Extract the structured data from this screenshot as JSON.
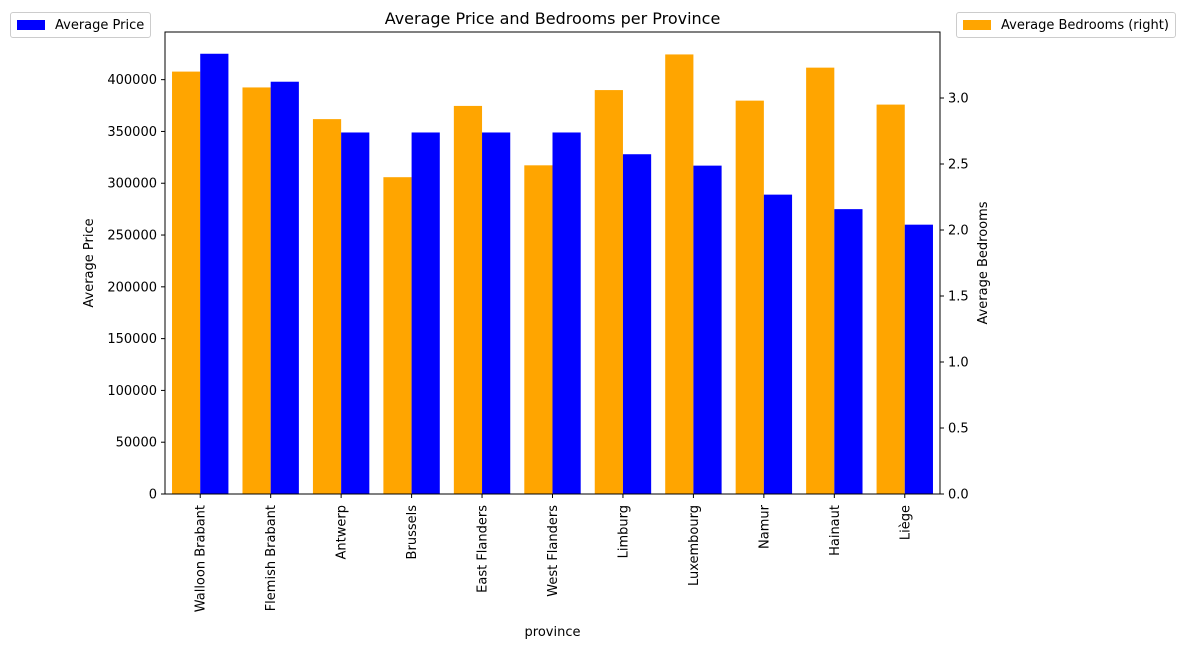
{
  "chart_data": {
    "type": "bar",
    "title": "Average Price and Bedrooms per Province",
    "xlabel": "province",
    "ylabel_left": "Average Price",
    "ylabel_right": "Average Bedrooms",
    "categories": [
      "Walloon Brabant",
      "Flemish Brabant",
      "Antwerp",
      "Brussels",
      "East Flanders",
      "West Flanders",
      "Limburg",
      "Luxembourg",
      "Namur",
      "Hainaut",
      "Liège"
    ],
    "series": [
      {
        "name": "Average Price",
        "axis": "left",
        "color": "#0000ff",
        "values": [
          425000,
          398000,
          349000,
          349000,
          349000,
          349000,
          328000,
          317000,
          289000,
          275000,
          260000
        ]
      },
      {
        "name": "Average Bedrooms (right)",
        "axis": "right",
        "color": "#ffa500",
        "values": [
          3.2,
          3.08,
          2.84,
          2.4,
          2.94,
          2.49,
          3.06,
          3.33,
          2.98,
          3.23,
          2.95
        ]
      }
    ],
    "ylim_left": [
      0,
      446000
    ],
    "ylim_right": [
      0,
      3.5
    ],
    "yticks_left": [
      "0",
      "50000",
      "100000",
      "150000",
      "200000",
      "250000",
      "300000",
      "350000",
      "400000"
    ],
    "yticks_right": [
      "0.0",
      "0.5",
      "1.0",
      "1.5",
      "2.0",
      "2.5",
      "3.0"
    ],
    "grid": false,
    "legend_left": "top-left",
    "legend_right": "top-right"
  }
}
